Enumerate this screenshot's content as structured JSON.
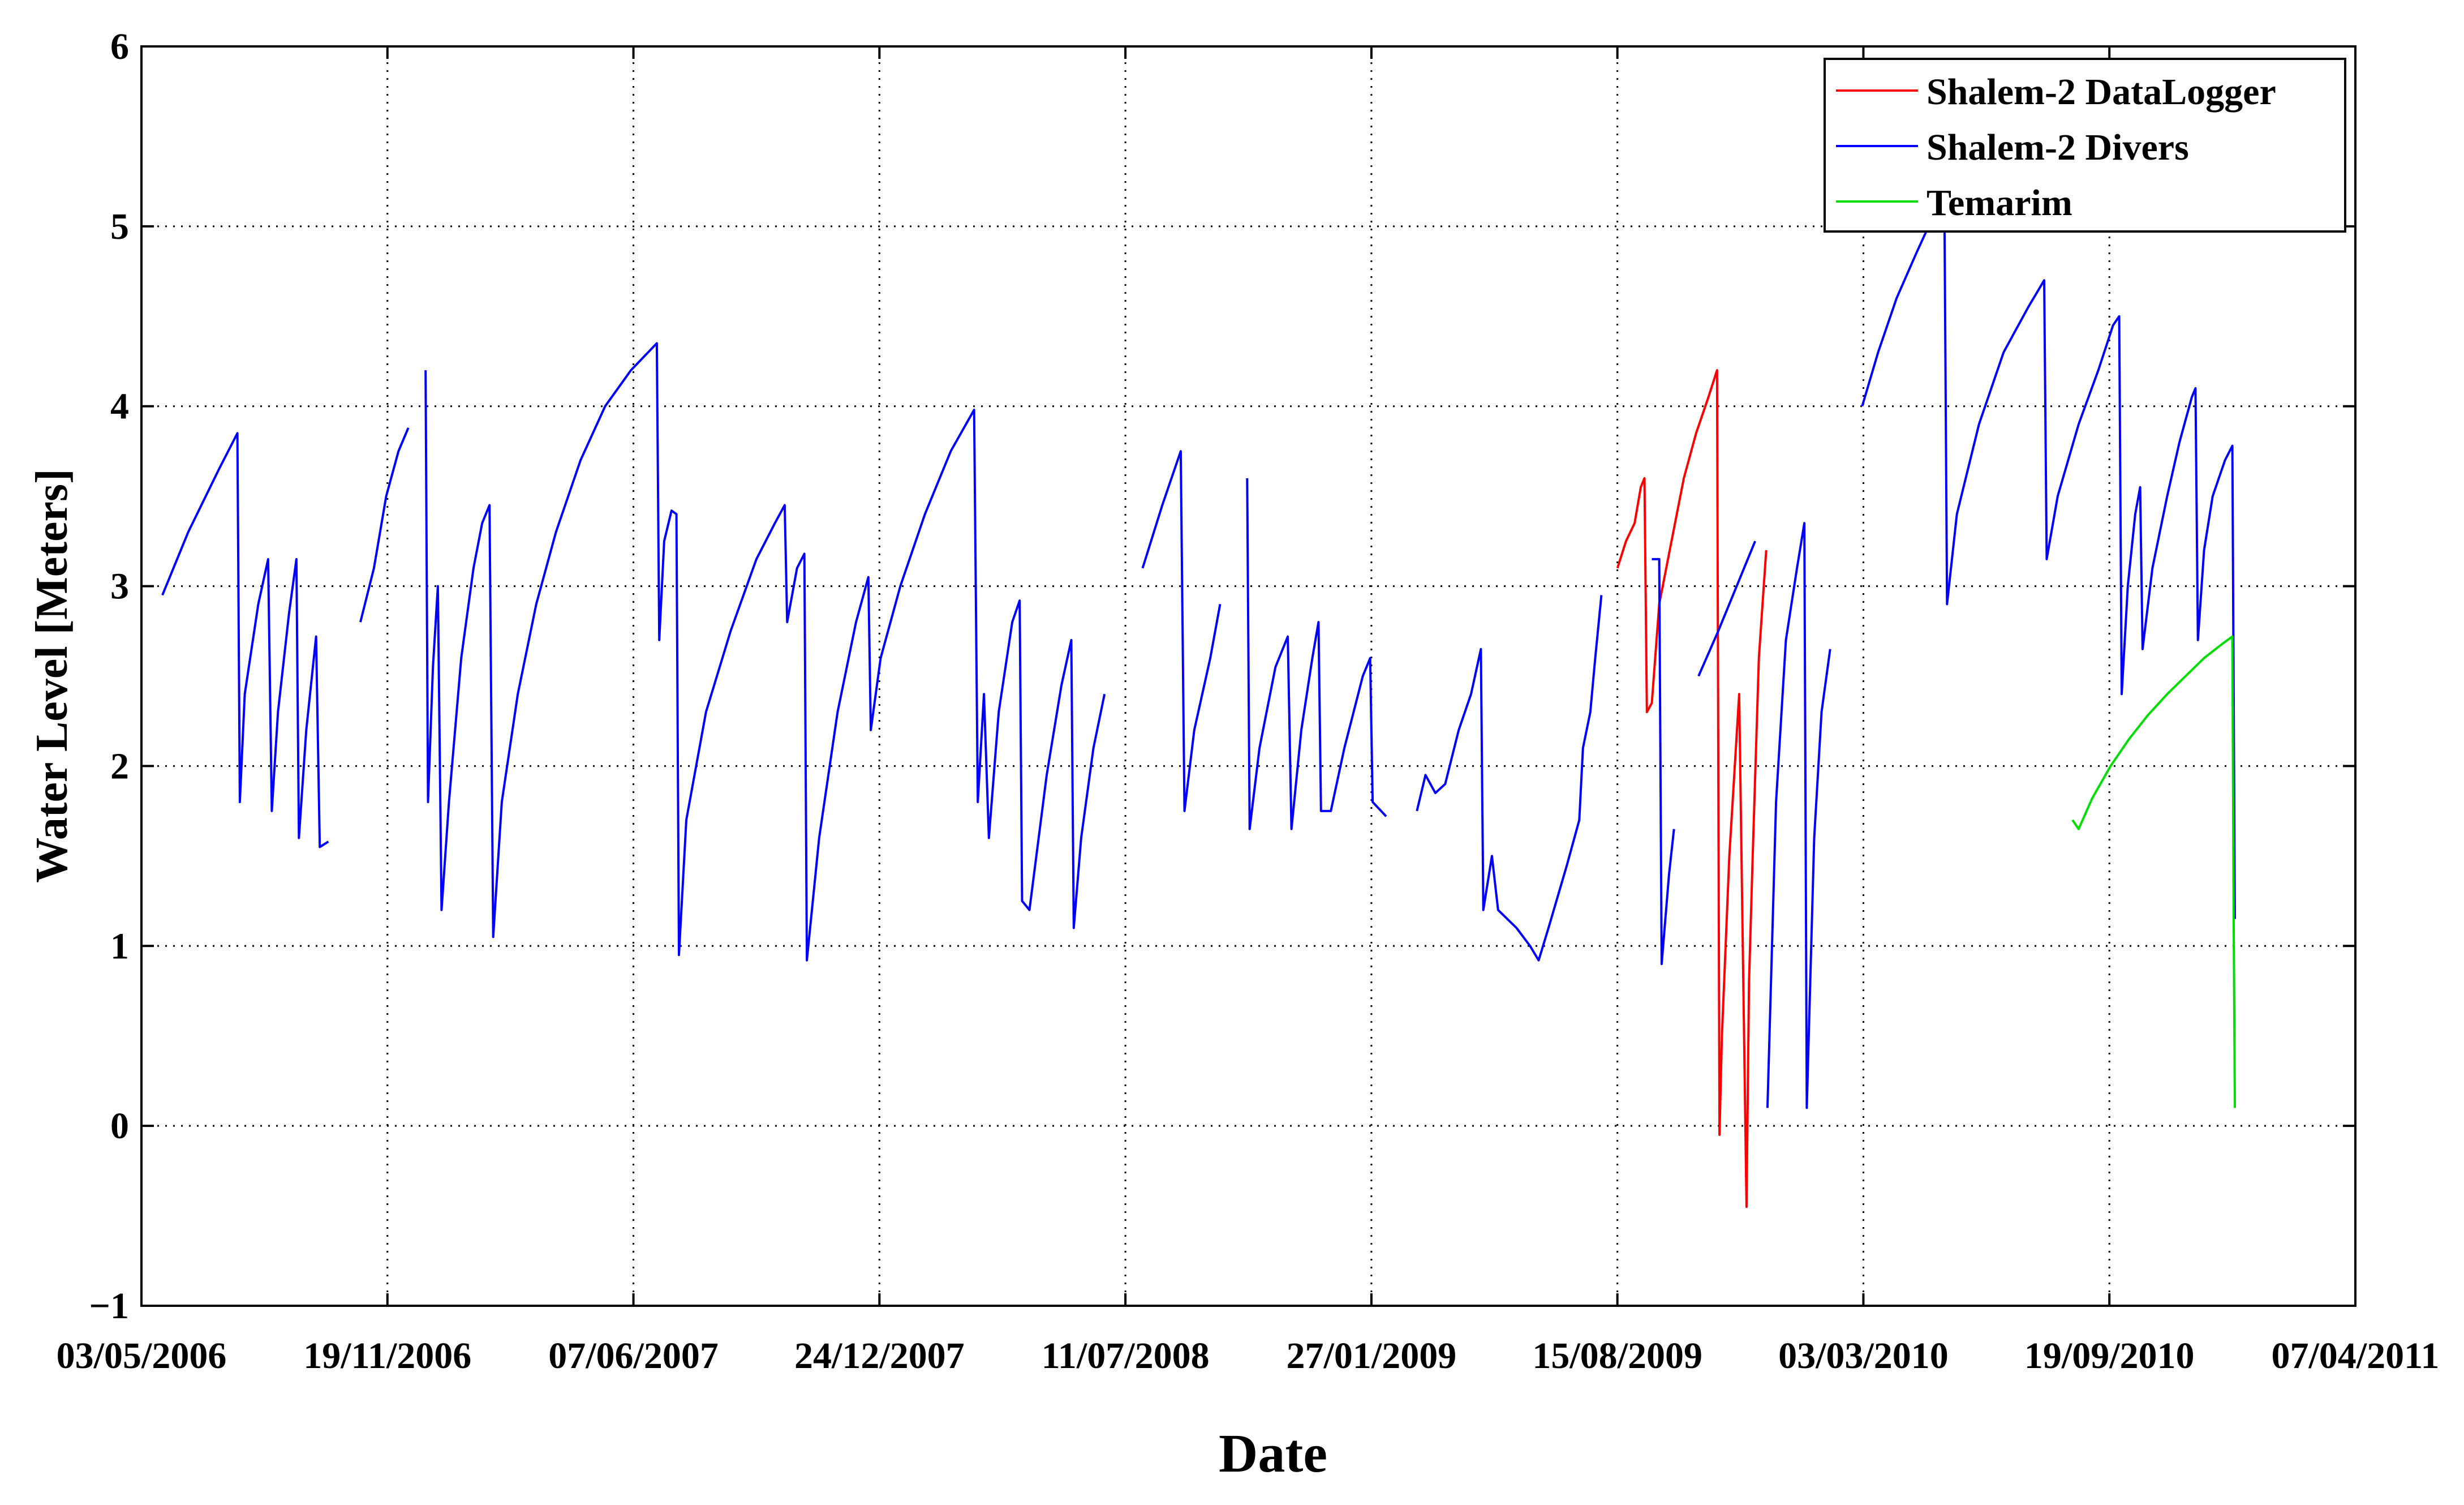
{
  "chart_data": {
    "type": "line",
    "title": "",
    "xlabel": "Date",
    "ylabel": "Water Level [Meters]",
    "x_type": "date",
    "xlim": [
      "2006-05-03",
      "2011-04-07"
    ],
    "ylim": [
      -1,
      6
    ],
    "grid": true,
    "legend_position": "top-right",
    "x_tick_labels": [
      "03/05/2006",
      "19/11/2006",
      "07/06/2007",
      "24/12/2007",
      "11/07/2008",
      "27/01/2009",
      "15/08/2009",
      "03/03/2010",
      "19/09/2010",
      "07/04/2011"
    ],
    "x_ticks": [
      "2006-05-03",
      "2006-11-19",
      "2007-06-07",
      "2007-12-24",
      "2008-07-11",
      "2009-01-27",
      "2009-08-15",
      "2010-03-03",
      "2010-09-19",
      "2011-04-07"
    ],
    "y_ticks": [
      -1,
      0,
      1,
      2,
      3,
      4,
      5,
      6
    ],
    "y_tick_labels": [
      "−1",
      "0",
      "1",
      "2",
      "3",
      "4",
      "5",
      "6"
    ],
    "series": [
      {
        "name": "Shalem-2 DataLogger",
        "color": "#ff0000",
        "points": [
          [
            "2009-08-15",
            3.1
          ],
          [
            "2009-08-22",
            3.25
          ],
          [
            "2009-08-29",
            3.35
          ],
          [
            "2009-09-03",
            3.55
          ],
          [
            "2009-09-06",
            3.6
          ],
          [
            "2009-09-08",
            2.3
          ],
          [
            "2009-09-12",
            2.35
          ],
          [
            "2009-09-18",
            2.9
          ],
          [
            "2009-09-28",
            3.25
          ],
          [
            "2009-10-08",
            3.6
          ],
          [
            "2009-10-18",
            3.85
          ],
          [
            "2009-10-28",
            4.05
          ],
          [
            "2009-11-04",
            4.2
          ],
          [
            "2009-11-06",
            -0.05
          ],
          [
            "2009-11-08",
            0.5
          ],
          [
            "2009-11-14",
            1.5
          ],
          [
            "2009-11-22",
            2.4
          ],
          [
            "2009-11-28",
            -0.45
          ],
          [
            "2009-11-30",
            0.8
          ],
          [
            "2009-12-03",
            1.5
          ],
          [
            "2009-12-08",
            2.6
          ],
          [
            "2009-12-14",
            3.2
          ]
        ]
      },
      {
        "name": "Shalem-2 Divers",
        "color": "#0000ff",
        "points": [
          [
            "2006-05-20",
            2.95
          ],
          [
            "2006-06-10",
            3.3
          ],
          [
            "2006-07-05",
            3.65
          ],
          [
            "2006-07-20",
            3.85
          ],
          [
            "2006-07-22",
            1.8
          ],
          [
            "2006-07-26",
            2.4
          ],
          [
            "2006-08-06",
            2.9
          ],
          [
            "2006-08-14",
            3.15
          ],
          [
            "2006-08-17",
            1.75
          ],
          [
            "2006-08-22",
            2.3
          ],
          [
            "2006-08-31",
            2.85
          ],
          [
            "2006-09-06",
            3.15
          ],
          [
            "2006-09-08",
            1.6
          ],
          [
            "2006-09-14",
            2.2
          ],
          [
            "2006-09-22",
            2.72
          ],
          [
            "2006-09-25",
            1.55
          ],
          [
            "2006-10-02",
            1.58
          ],
          [
            "null",
            null
          ],
          [
            "2006-10-28",
            2.8
          ],
          [
            "2006-11-08",
            3.1
          ],
          [
            "2006-11-18",
            3.5
          ],
          [
            "2006-11-28",
            3.75
          ],
          [
            "2006-12-06",
            3.88
          ],
          [
            "null",
            null
          ],
          [
            "2006-12-20",
            4.2
          ],
          [
            "2006-12-22",
            1.8
          ],
          [
            "2006-12-26",
            2.55
          ],
          [
            "2006-12-30",
            3.0
          ],
          [
            "2007-01-02",
            1.2
          ],
          [
            "2007-01-08",
            1.8
          ],
          [
            "2007-01-18",
            2.6
          ],
          [
            "2007-01-28",
            3.1
          ],
          [
            "2007-02-04",
            3.35
          ],
          [
            "2007-02-10",
            3.45
          ],
          [
            "2007-02-13",
            1.05
          ],
          [
            "2007-02-20",
            1.8
          ],
          [
            "2007-03-05",
            2.4
          ],
          [
            "2007-03-20",
            2.9
          ],
          [
            "2007-04-05",
            3.3
          ],
          [
            "2007-04-25",
            3.7
          ],
          [
            "2007-05-15",
            4.0
          ],
          [
            "2007-06-05",
            4.2
          ],
          [
            "2007-06-26",
            4.35
          ],
          [
            "2007-06-28",
            2.7
          ],
          [
            "2007-07-02",
            3.25
          ],
          [
            "2007-07-08",
            3.42
          ],
          [
            "2007-07-12",
            3.4
          ],
          [
            "2007-07-14",
            0.95
          ],
          [
            "2007-07-20",
            1.7
          ],
          [
            "2007-08-05",
            2.3
          ],
          [
            "2007-08-25",
            2.75
          ],
          [
            "2007-09-15",
            3.15
          ],
          [
            "2007-09-30",
            3.35
          ],
          [
            "2007-10-08",
            3.45
          ],
          [
            "2007-10-10",
            2.8
          ],
          [
            "2007-10-18",
            3.1
          ],
          [
            "2007-10-24",
            3.18
          ],
          [
            "2007-10-26",
            0.92
          ],
          [
            "2007-11-05",
            1.6
          ],
          [
            "2007-11-20",
            2.3
          ],
          [
            "2007-12-05",
            2.8
          ],
          [
            "2007-12-15",
            3.05
          ],
          [
            "2007-12-17",
            2.2
          ],
          [
            "2007-12-25",
            2.6
          ],
          [
            "2008-01-10",
            3.0
          ],
          [
            "2008-01-30",
            3.4
          ],
          [
            "2008-02-20",
            3.75
          ],
          [
            "2008-03-10",
            3.98
          ],
          [
            "2008-03-13",
            1.8
          ],
          [
            "2008-03-18",
            2.4
          ],
          [
            "2008-03-22",
            1.6
          ],
          [
            "2008-03-30",
            2.3
          ],
          [
            "2008-04-10",
            2.8
          ],
          [
            "2008-04-16",
            2.92
          ],
          [
            "2008-04-18",
            1.25
          ],
          [
            "2008-04-24",
            1.2
          ],
          [
            "2008-05-08",
            1.95
          ],
          [
            "2008-05-20",
            2.45
          ],
          [
            "2008-05-28",
            2.7
          ],
          [
            "2008-05-30",
            1.1
          ],
          [
            "2008-06-05",
            1.6
          ],
          [
            "2008-06-15",
            2.1
          ],
          [
            "2008-06-24",
            2.4
          ],
          [
            "null",
            null
          ],
          [
            "2008-07-25",
            3.1
          ],
          [
            "2008-08-10",
            3.45
          ],
          [
            "2008-08-25",
            3.75
          ],
          [
            "2008-08-28",
            1.75
          ],
          [
            "2008-09-05",
            2.2
          ],
          [
            "2008-09-18",
            2.6
          ],
          [
            "2008-09-26",
            2.9
          ],
          [
            "null",
            null
          ],
          [
            "2008-10-18",
            3.6
          ],
          [
            "2008-10-20",
            1.65
          ],
          [
            "2008-10-28",
            2.1
          ],
          [
            "2008-11-10",
            2.55
          ],
          [
            "2008-11-20",
            2.72
          ],
          [
            "2008-11-23",
            1.65
          ],
          [
            "2008-12-01",
            2.2
          ],
          [
            "2008-12-10",
            2.6
          ],
          [
            "2008-12-15",
            2.8
          ],
          [
            "2008-12-17",
            1.75
          ],
          [
            "2008-12-25",
            1.75
          ],
          [
            "2009-01-05",
            2.1
          ],
          [
            "2009-01-20",
            2.5
          ],
          [
            "2009-01-26",
            2.6
          ],
          [
            "2009-01-28",
            1.8
          ],
          [
            "2009-02-08",
            1.72
          ],
          [
            "null",
            null
          ],
          [
            "2009-03-05",
            1.75
          ],
          [
            "2009-03-12",
            1.95
          ],
          [
            "2009-03-20",
            1.85
          ],
          [
            "2009-03-28",
            1.9
          ],
          [
            "2009-04-08",
            2.2
          ],
          [
            "2009-04-18",
            2.4
          ],
          [
            "2009-04-26",
            2.65
          ],
          [
            "2009-04-28",
            1.2
          ],
          [
            "2009-05-05",
            1.5
          ],
          [
            "2009-05-10",
            1.2
          ],
          [
            "2009-05-25",
            1.1
          ],
          [
            "2009-06-05",
            1.0
          ],
          [
            "2009-06-12",
            0.92
          ],
          [
            "2009-06-20",
            1.1
          ],
          [
            "2009-07-05",
            1.45
          ],
          [
            "2009-07-15",
            1.7
          ],
          [
            "2009-07-18",
            2.1
          ],
          [
            "2009-07-24",
            2.3
          ],
          [
            "2009-07-28",
            2.6
          ],
          [
            "2009-08-02",
            2.95
          ],
          [
            "null",
            null
          ],
          [
            "2009-09-12",
            3.15
          ],
          [
            "2009-09-18",
            3.15
          ],
          [
            "2009-09-20",
            0.9
          ],
          [
            "2009-09-26",
            1.4
          ],
          [
            "2009-09-30",
            1.65
          ],
          [
            "null",
            null
          ],
          [
            "2009-10-20",
            2.5
          ],
          [
            "2009-11-05",
            2.75
          ],
          [
            "2009-11-20",
            3.0
          ],
          [
            "2009-12-02",
            3.2
          ],
          [
            "2009-12-05",
            3.25
          ],
          [
            "null",
            null
          ],
          [
            "2009-12-15",
            0.1
          ],
          [
            "2009-12-22",
            1.8
          ],
          [
            "2009-12-30",
            2.7
          ],
          [
            "2010-01-08",
            3.1
          ],
          [
            "2010-01-14",
            3.35
          ],
          [
            "2010-01-16",
            0.1
          ],
          [
            "2010-01-22",
            1.6
          ],
          [
            "2010-01-28",
            2.3
          ],
          [
            "2010-02-04",
            2.65
          ],
          [
            "null",
            null
          ],
          [
            "2010-03-02",
            4.0
          ],
          [
            "2010-03-15",
            4.3
          ],
          [
            "2010-03-30",
            4.6
          ],
          [
            "2010-04-15",
            4.85
          ],
          [
            "2010-04-25",
            5.0
          ],
          [
            "null",
            null
          ],
          [
            "2010-05-08",
            5.0
          ],
          [
            "2010-05-10",
            2.9
          ],
          [
            "2010-05-18",
            3.4
          ],
          [
            "2010-06-05",
            3.9
          ],
          [
            "2010-06-25",
            4.3
          ],
          [
            "2010-07-15",
            4.55
          ],
          [
            "2010-07-28",
            4.7
          ],
          [
            "2010-07-30",
            3.15
          ],
          [
            "2010-08-08",
            3.5
          ],
          [
            "2010-08-25",
            3.9
          ],
          [
            "2010-09-10",
            4.2
          ],
          [
            "2010-09-22",
            4.45
          ],
          [
            "2010-09-27",
            4.5
          ],
          [
            "2010-09-29",
            2.4
          ],
          [
            "2010-10-04",
            3.0
          ],
          [
            "2010-10-10",
            3.4
          ],
          [
            "2010-10-14",
            3.55
          ],
          [
            "2010-10-16",
            2.65
          ],
          [
            "2010-10-24",
            3.1
          ],
          [
            "2010-11-05",
            3.5
          ],
          [
            "2010-11-15",
            3.8
          ],
          [
            "2010-11-25",
            4.05
          ],
          [
            "2010-11-28",
            4.1
          ],
          [
            "2010-11-30",
            2.7
          ],
          [
            "2010-12-05",
            3.2
          ],
          [
            "2010-12-12",
            3.5
          ],
          [
            "2010-12-22",
            3.7
          ],
          [
            "2010-12-28",
            3.78
          ],
          [
            "2010-12-30",
            1.15
          ]
        ]
      },
      {
        "name": "Temarim",
        "color": "#00dd00",
        "points": [
          [
            "2010-08-20",
            1.7
          ],
          [
            "2010-08-25",
            1.65
          ],
          [
            "2010-09-05",
            1.82
          ],
          [
            "2010-09-20",
            2.0
          ],
          [
            "2010-10-05",
            2.15
          ],
          [
            "2010-10-20",
            2.28
          ],
          [
            "2010-11-05",
            2.4
          ],
          [
            "2010-11-20",
            2.5
          ],
          [
            "2010-12-05",
            2.6
          ],
          [
            "2010-12-20",
            2.68
          ],
          [
            "2010-12-28",
            2.72
          ],
          [
            "2010-12-29",
            1.2
          ],
          [
            "2010-12-30",
            0.1
          ]
        ]
      }
    ]
  }
}
